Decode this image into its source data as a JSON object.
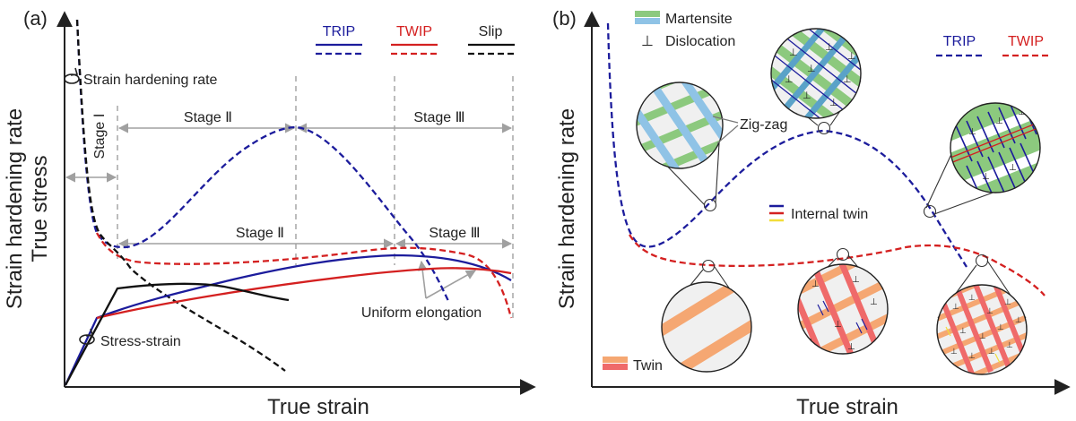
{
  "colors": {
    "trip": "#1c1c9c",
    "twip": "#d42020",
    "slip": "#111111",
    "guide": "#999999",
    "arrow": "#a0a0a0",
    "martensite_green": "#8cc97e",
    "martensite_blue": "#8fc3e6",
    "twin_orange": "#f5a772",
    "twin_red": "#ef6a6a",
    "circle_bg": "#f0f0f0"
  },
  "panel_a": {
    "label": "(a)",
    "xlabel": "True strain",
    "ylabel_top": "Strain hardening rate",
    "ylabel_bottom": "True stress",
    "legend": [
      {
        "name": "TRIP",
        "color": "trip"
      },
      {
        "name": "TWIP",
        "color": "twip"
      },
      {
        "name": "Slip",
        "color": "slip"
      }
    ],
    "annotations": {
      "strain_hardening_rate": "Strain hardening rate",
      "stress_strain": "Stress-strain",
      "stage1": "Stage Ⅰ",
      "stage2_top": "Stage Ⅱ",
      "stage3_top": "Stage Ⅲ",
      "stage2_mid": "Stage Ⅱ",
      "stage3_mid": "Stage Ⅲ",
      "uniform_elongation": "Uniform elongation"
    }
  },
  "panel_b": {
    "label": "(b)",
    "xlabel": "True strain",
    "ylabel": "Strain hardening rate",
    "legend": [
      {
        "name": "TRIP",
        "color": "trip"
      },
      {
        "name": "TWIP",
        "color": "twip"
      }
    ],
    "key": {
      "martensite": "Martensite",
      "dislocation": "Dislocation",
      "twin": "Twin",
      "internal_twin": "Internal twin",
      "zigzag": "Zig-zag",
      "dislocation_symbol": "⊥"
    }
  }
}
